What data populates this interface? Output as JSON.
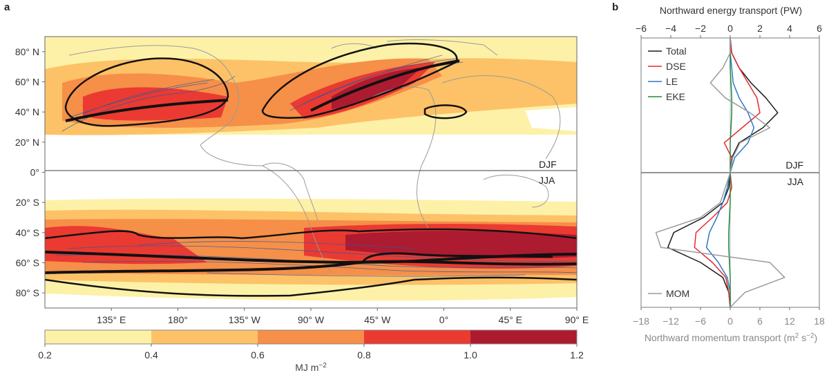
{
  "panel_a_letter": "a",
  "panel_b_letter": "b",
  "chart_data": [
    {
      "type": "heatmap",
      "panel": "a",
      "lat_ticks": [
        "80° N",
        "60° N",
        "40° N",
        "20° N",
        "0°",
        "20° S",
        "40° S",
        "60° S",
        "80° S"
      ],
      "lat_values": [
        80,
        60,
        40,
        20,
        0,
        -20,
        -40,
        -60,
        -80
      ],
      "lon_ticks": [
        "135° E",
        "180°",
        "135° W",
        "90° W",
        "45° W",
        "0°",
        "45° E",
        "90° E"
      ],
      "lon_values": [
        135,
        180,
        225,
        270,
        315,
        360,
        405,
        450
      ],
      "season_top": "DJF",
      "season_bottom": "JJA",
      "colorbar": {
        "label": "MJ m",
        "label_exp": "−2",
        "ticks": [
          "0.2",
          "0.4",
          "0.6",
          "0.8",
          "1.0",
          "1.2"
        ],
        "bins": [
          [
            0.2,
            0.4
          ],
          [
            0.4,
            0.6
          ],
          [
            0.6,
            0.8
          ],
          [
            0.8,
            1.0
          ],
          [
            1.0,
            1.2
          ]
        ],
        "colors": [
          "#fdf1a8",
          "#fdc267",
          "#f68f48",
          "#ea3a31",
          "#ad1b30"
        ]
      }
    },
    {
      "type": "line",
      "panel": "b",
      "top_axis_label": "Northward energy transport (PW)",
      "top_ticks": [
        "−6",
        "−4",
        "−2",
        "0",
        "2",
        "4",
        "6"
      ],
      "top_tick_values": [
        -6,
        -4,
        -2,
        0,
        2,
        4,
        6
      ],
      "bottom_axis_label": "Northward momentum transport (m",
      "bottom_axis_label_exp": "2",
      "bottom_axis_label_mid": " s",
      "bottom_axis_label_exp2": "−2",
      "bottom_axis_label_end": ")",
      "bottom_ticks": [
        "−18",
        "−12",
        "−6",
        "0",
        "6",
        "12",
        "18"
      ],
      "bottom_tick_values": [
        -18,
        -12,
        -6,
        0,
        6,
        12,
        18
      ],
      "xlim_top": [
        -6,
        6
      ],
      "xlim_bottom": [
        -18,
        18
      ],
      "ylim_lat": [
        -90,
        90
      ],
      "season_top": "DJF",
      "season_bottom": "JJA",
      "legend": [
        {
          "name": "Total",
          "color": "#1a1a1a"
        },
        {
          "name": "DSE",
          "color": "#e8282c"
        },
        {
          "name": "LE",
          "color": "#2a78c8"
        },
        {
          "name": "EKE",
          "color": "#1d8a3c"
        }
      ],
      "mom_label": "MOM",
      "mom_color": "#9a9a9a",
      "lat": [
        90,
        80,
        70,
        60,
        50,
        40,
        30,
        20,
        10,
        0,
        -10,
        -20,
        -30,
        -40,
        -50,
        -60,
        -70,
        -80,
        -90
      ],
      "series": [
        {
          "name": "Total",
          "color": "#1a1a1a",
          "x": [
            0,
            0.1,
            0.6,
            1.4,
            2.4,
            3.2,
            2.2,
            0.6,
            0.1,
            0,
            -0.1,
            -0.5,
            -1.8,
            -3.8,
            -4.2,
            -2.0,
            -0.5,
            -0.1,
            0
          ]
        },
        {
          "name": "DSE",
          "color": "#e8282c",
          "x": [
            0,
            0.1,
            0.6,
            1.2,
            1.8,
            2.0,
            0.8,
            -0.4,
            0.1,
            0,
            0.1,
            -0.2,
            -1.2,
            -2.3,
            -2.4,
            -1.2,
            -0.3,
            -0.1,
            0
          ]
        },
        {
          "name": "LE",
          "color": "#2a78c8",
          "x": [
            0,
            0,
            0.1,
            0.2,
            0.6,
            1.2,
            1.6,
            1.2,
            0.3,
            0,
            -0.2,
            -0.5,
            -0.9,
            -1.4,
            -1.6,
            -0.8,
            -0.2,
            0,
            0
          ]
        },
        {
          "name": "EKE",
          "color": "#1d8a3c",
          "x": [
            0,
            0,
            0,
            0.05,
            0.1,
            0.1,
            0.05,
            0,
            0,
            0,
            0,
            0,
            -0.05,
            -0.1,
            -0.1,
            -0.05,
            0,
            0,
            0
          ]
        },
        {
          "name": "MOM",
          "color": "#9a9a9a",
          "x": [
            0,
            0,
            -1.5,
            -4,
            -1,
            4,
            8,
            2,
            0.5,
            0,
            -1,
            -2,
            -6,
            -15,
            -14,
            8,
            11,
            3,
            0
          ]
        }
      ]
    }
  ]
}
